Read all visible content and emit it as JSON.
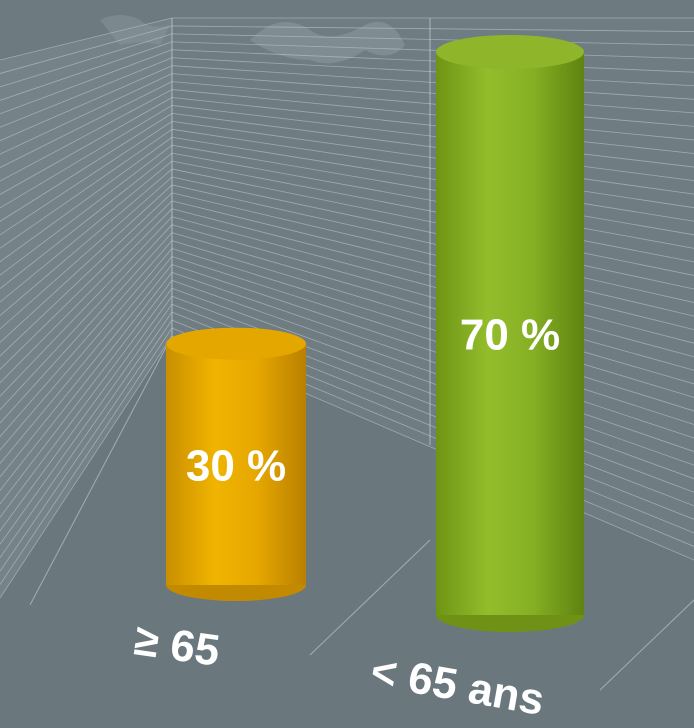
{
  "chart_data": {
    "type": "bar",
    "categories": [
      "≥ 65",
      "< 65 ans"
    ],
    "values": [
      30,
      70
    ],
    "data_labels": [
      "30 %",
      "70 %"
    ],
    "ylim": [
      0,
      70
    ],
    "grid": true,
    "colors": {
      "background": "#6d7b81",
      "bar_1": "#e8a800",
      "bar_2": "#84ad22",
      "grid": "#c9d0d3",
      "label": "#ffffff"
    }
  }
}
